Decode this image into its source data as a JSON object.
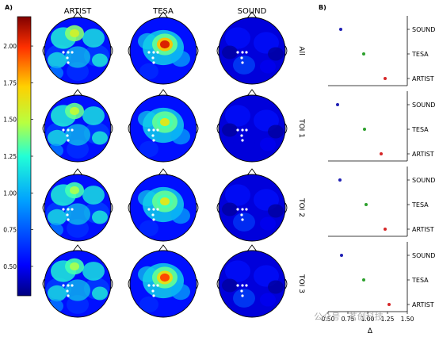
{
  "panel_a": {
    "label": "A)",
    "columns": [
      "ARTIST",
      "TESA",
      "SOUND"
    ],
    "rows": [
      "All",
      "TOI 1",
      "TOI 2",
      "TOI 3"
    ]
  },
  "panel_b": {
    "label": "B)",
    "xlabel": "Δ"
  },
  "watermark": "公众号 · 茗创科技",
  "colors": {
    "artist_dot": "#d62728",
    "tesa_dot": "#2ca02c",
    "sound_dot": "#1f1fb4"
  },
  "chart_data": [
    {
      "type": "heatmap",
      "title": "",
      "colorbar": {
        "ticks": [
          "0.50",
          "0.75",
          "1.00",
          "1.25",
          "1.50",
          "1.75",
          "2.00"
        ],
        "range": [
          0.3,
          2.2
        ]
      },
      "columns": [
        "ARTIST",
        "TESA",
        "SOUND"
      ],
      "rows": [
        "All",
        "TOI 1",
        "TOI 2",
        "TOI 3"
      ],
      "peak_values": [
        [
          1.55,
          2.05,
          0.75
        ],
        [
          1.5,
          1.6,
          0.45
        ],
        [
          1.45,
          1.6,
          0.7
        ],
        [
          1.45,
          1.95,
          0.75
        ]
      ]
    },
    {
      "type": "scatter",
      "xlabel": "Δ",
      "xlim": [
        0.5,
        1.5
      ],
      "xticks": [
        "0.50",
        "0.75",
        "1.00",
        "1.25",
        "1.50"
      ],
      "categories": [
        "SOUND",
        "TESA",
        "ARTIST"
      ],
      "panels": [
        {
          "name": "All",
          "values": {
            "SOUND": 0.66,
            "TESA": 0.95,
            "ARTIST": 1.22
          }
        },
        {
          "name": "TOI 1",
          "values": {
            "SOUND": 0.62,
            "TESA": 0.96,
            "ARTIST": 1.17
          }
        },
        {
          "name": "TOI 2",
          "values": {
            "SOUND": 0.65,
            "TESA": 0.98,
            "ARTIST": 1.22
          }
        },
        {
          "name": "TOI 3",
          "values": {
            "SOUND": 0.67,
            "TESA": 0.95,
            "ARTIST": 1.27
          }
        }
      ]
    }
  ]
}
